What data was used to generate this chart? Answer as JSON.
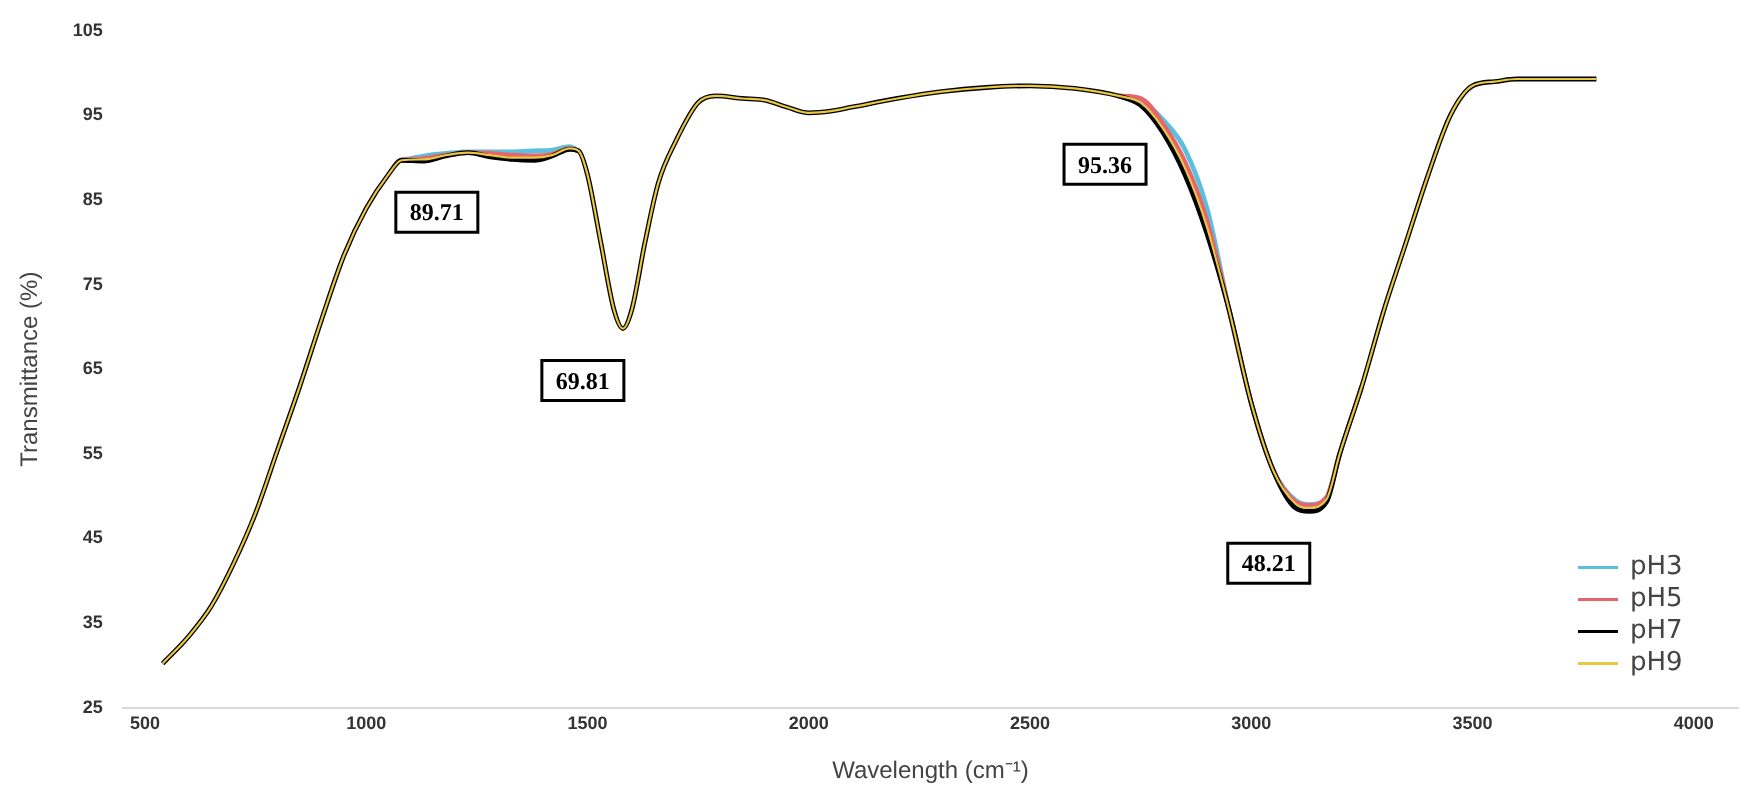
{
  "chart_data": {
    "type": "line",
    "xlabel": "Wavelength (cm⁻¹)",
    "ylabel": "Transmittance (%)",
    "xlim": [
      450,
      4100
    ],
    "xticks": [
      500,
      1000,
      1500,
      2000,
      2500,
      3000,
      3500,
      4000
    ],
    "ylim": [
      25,
      105
    ],
    "yticks": [
      25,
      35,
      45,
      55,
      65,
      75,
      85,
      95,
      105
    ],
    "grid": false,
    "legend": "bottom right",
    "marker": "none",
    "line_style": "solid",
    "x": [
      540,
      600,
      650,
      700,
      750,
      800,
      850,
      900,
      950,
      1000,
      1050,
      1080,
      1130,
      1180,
      1230,
      1280,
      1330,
      1380,
      1420,
      1460,
      1480,
      1500,
      1530,
      1560,
      1580,
      1600,
      1630,
      1660,
      1700,
      1750,
      1790,
      1850,
      1900,
      1950,
      2000,
      2050,
      2100,
      2200,
      2300,
      2400,
      2500,
      2600,
      2700,
      2750,
      2800,
      2850,
      2900,
      2950,
      3000,
      3050,
      3100,
      3130,
      3170,
      3200,
      3250,
      3300,
      3350,
      3400,
      3450,
      3500,
      3550,
      3600,
      3700,
      3780
    ],
    "series": [
      {
        "name": "pH3",
        "color": "#5bc0de",
        "values": [
          null,
          null,
          null,
          null,
          null,
          null,
          null,
          null,
          null,
          null,
          null,
          89.7,
          90.2,
          90.5,
          90.7,
          90.7,
          90.7,
          90.8,
          90.9,
          91.3,
          90.8,
          null,
          null,
          null,
          null,
          null,
          null,
          null,
          null,
          null,
          null,
          null,
          null,
          null,
          null,
          null,
          null,
          null,
          null,
          null,
          null,
          null,
          97.3,
          96.8,
          94.5,
          91,
          84,
          72,
          61,
          53,
          49.5,
          49,
          49.8,
          55,
          63,
          null,
          null,
          null,
          null,
          null,
          null,
          null,
          null,
          null
        ]
      },
      {
        "name": "pH5",
        "color": "#e8636b",
        "values": [
          null,
          null,
          null,
          null,
          null,
          null,
          null,
          null,
          null,
          null,
          null,
          89.7,
          89.9,
          90.3,
          90.6,
          90.5,
          90.3,
          90.2,
          90.4,
          91.1,
          90.8,
          null,
          null,
          null,
          null,
          null,
          null,
          null,
          null,
          null,
          null,
          null,
          null,
          null,
          null,
          null,
          null,
          null,
          null,
          null,
          null,
          null,
          97.3,
          97,
          94,
          89.5,
          82.5,
          72,
          61,
          53,
          49.3,
          48.9,
          49.8,
          55,
          63,
          null,
          null,
          null,
          null,
          null,
          null,
          null,
          null,
          null
        ]
      },
      {
        "name": "pH7",
        "color": "#000000",
        "values": [
          30.2,
          33.5,
          37,
          42,
          48,
          55.5,
          63,
          71,
          78.5,
          84,
          88,
          89.7,
          89.6,
          90.2,
          90.6,
          90.1,
          89.8,
          89.7,
          90.2,
          91,
          90.8,
          88,
          80,
          72,
          69.8,
          72,
          80,
          87,
          92,
          96.5,
          97.3,
          97,
          96.8,
          96,
          95.3,
          95.5,
          96,
          97,
          97.8,
          98.3,
          98.5,
          98.2,
          97.3,
          96.2,
          93,
          88,
          81,
          72,
          61,
          53,
          48.6,
          48.2,
          49.3,
          55,
          63,
          72,
          80,
          88,
          95,
          98.5,
          99,
          99.3,
          99.3,
          99.3
        ]
      },
      {
        "name": "pH9",
        "color": "#e8c840",
        "values": [
          30.2,
          33.5,
          37,
          42,
          48,
          55.5,
          63,
          71,
          78.5,
          84,
          88,
          89.7,
          89.8,
          90.3,
          90.6,
          90.3,
          90,
          90,
          90.3,
          91.1,
          90.8,
          88,
          80,
          72,
          69.8,
          72,
          80,
          87,
          92,
          96.5,
          97.3,
          97,
          96.8,
          96,
          95.3,
          95.5,
          96,
          97,
          97.8,
          98.3,
          98.5,
          98.2,
          97.3,
          96.5,
          93.5,
          88.8,
          81.8,
          72,
          61,
          53,
          49.1,
          48.6,
          49.6,
          55,
          63,
          72,
          80,
          88,
          95,
          98.5,
          99,
          99.3,
          99.3,
          99.3
        ]
      }
    ],
    "annotations": [
      {
        "text": "89.71",
        "x": 1250,
        "y": 89.71
      },
      {
        "text": "69.81",
        "x": 1580,
        "y": 69.81
      },
      {
        "text": "95.36",
        "x": 2760,
        "y": 95.36
      },
      {
        "text": "48.21",
        "x": 3130,
        "y": 48.21
      }
    ]
  }
}
